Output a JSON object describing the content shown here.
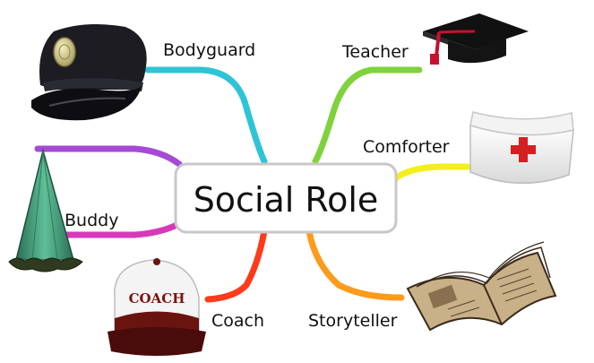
{
  "center_label": "Social Role",
  "roles": [
    {
      "label": "Bodyguard",
      "icon": "police-cap-icon",
      "color": "#2ec4d6"
    },
    {
      "label": "Teacher",
      "icon": "graduation-cap-icon",
      "color": "#7fd23c"
    },
    {
      "label": "Comforter",
      "icon": "nurse-cap-icon",
      "color": "#f2ef1a"
    },
    {
      "label": "Storyteller",
      "icon": "open-book-icon",
      "color": "#ff9a1a"
    },
    {
      "label": "Coach",
      "icon": "trucker-cap-icon",
      "color": "#ff3a1a"
    },
    {
      "label": "Buddy",
      "icon": "party-hat-icon",
      "color": "#d63ab8"
    }
  ],
  "branch_colors": {
    "purple": "#a64ad6",
    "magenta": "#d63ab8"
  },
  "coach_cap_text": "COACH"
}
